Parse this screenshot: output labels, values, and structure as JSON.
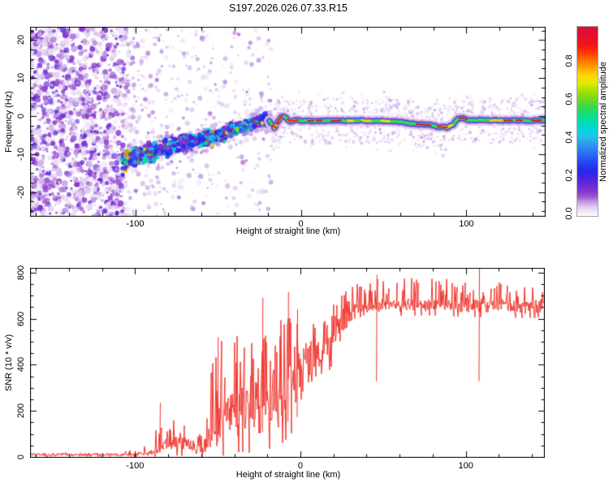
{
  "title": "S197.2026.026.07.33.R15",
  "spectrogram_panel": {
    "ylabel": "Frequency (Hz)",
    "xlabel": "Height of straight line (km)",
    "y_ticks": [
      {
        "label": "20",
        "value": 20
      },
      {
        "label": "10",
        "value": 10
      },
      {
        "label": "0",
        "value": 0
      },
      {
        "label": "-10",
        "value": -10
      },
      {
        "label": "-20",
        "value": -20
      }
    ],
    "x_ticks": [
      {
        "label": "-100",
        "value": -100
      },
      {
        "label": "0",
        "value": 0
      },
      {
        "label": "100",
        "value": 100
      }
    ]
  },
  "snr_panel": {
    "ylabel": "SNR (10 * v/v)",
    "xlabel": "Height of straight line (km)",
    "y_ticks": [
      {
        "label": "0",
        "value": 0
      },
      {
        "label": "200",
        "value": 200
      },
      {
        "label": "400",
        "value": 400
      },
      {
        "label": "600",
        "value": 600
      },
      {
        "label": "800",
        "value": 800
      }
    ],
    "x_ticks": [
      {
        "label": "-100",
        "value": -100
      },
      {
        "label": "0",
        "value": 0
      },
      {
        "label": "100",
        "value": 100
      }
    ]
  },
  "colorbar": {
    "label": "Normalized spectral amplitude",
    "ticks": [
      {
        "label": "0.0",
        "value": 0.0
      },
      {
        "label": "0.2",
        "value": 0.2
      },
      {
        "label": "0.4",
        "value": 0.4
      },
      {
        "label": "0.6",
        "value": 0.6
      },
      {
        "label": "0.8",
        "value": 0.8
      }
    ],
    "range": [
      0.0,
      1.0
    ]
  },
  "chart_data": [
    {
      "type": "heatmap",
      "name": "doppler-spectrogram",
      "title": "S197.2026.026.07.33.R15",
      "xlabel": "Height of straight line (km)",
      "ylabel": "Frequency (Hz)",
      "xlim": [
        -163.5,
        147.8
      ],
      "ylim": [
        -26.5,
        23.5
      ],
      "x_minor_step": 20,
      "x_major_step": 100,
      "y_minor_step": 2.5,
      "y_major_step": 10,
      "colorbar_label": "Normalized spectral amplitude",
      "colormap_stops": [
        [
          0.0,
          "#ffffff"
        ],
        [
          0.02,
          "#f3ecfa"
        ],
        [
          0.05,
          "#ddc7f0"
        ],
        [
          0.08,
          "#bb8ce0"
        ],
        [
          0.1,
          "#9c59d1"
        ],
        [
          0.13,
          "#8735cc"
        ],
        [
          0.16,
          "#6c2bd7"
        ],
        [
          0.2,
          "#4527e0"
        ],
        [
          0.24,
          "#2828e8"
        ],
        [
          0.28,
          "#2446f0"
        ],
        [
          0.33,
          "#2a6df5"
        ],
        [
          0.38,
          "#2e9bf0"
        ],
        [
          0.42,
          "#1fc5e8"
        ],
        [
          0.46,
          "#00d8d8"
        ],
        [
          0.5,
          "#00dcae"
        ],
        [
          0.54,
          "#16dd7a"
        ],
        [
          0.58,
          "#3bd948"
        ],
        [
          0.62,
          "#74da1f"
        ],
        [
          0.66,
          "#a8e000"
        ],
        [
          0.7,
          "#e0ea00"
        ],
        [
          0.74,
          "#ffd800"
        ],
        [
          0.78,
          "#ffa800"
        ],
        [
          0.82,
          "#ff7300"
        ],
        [
          0.86,
          "#ff3d00"
        ],
        [
          0.9,
          "#f31616"
        ],
        [
          0.95,
          "#e40f2e"
        ],
        [
          1.0,
          "#d80f38"
        ]
      ],
      "trace_hz_vs_km": [
        [
          -108,
          -12.3
        ],
        [
          -104,
          -11.3
        ],
        [
          -100,
          -10.8
        ],
        [
          -96,
          -10.2
        ],
        [
          -92,
          -9.7
        ],
        [
          -88,
          -9.3
        ],
        [
          -84,
          -8.8
        ],
        [
          -80,
          -8.3
        ],
        [
          -76,
          -7.8
        ],
        [
          -72,
          -7.3
        ],
        [
          -68,
          -6.9
        ],
        [
          -64,
          -6.6
        ],
        [
          -60,
          -6.3
        ],
        [
          -56,
          -5.9
        ],
        [
          -52,
          -5.4
        ],
        [
          -48,
          -4.9
        ],
        [
          -44,
          -4.3
        ],
        [
          -40,
          -3.7
        ],
        [
          -36,
          -3.0
        ],
        [
          -32,
          -2.4
        ],
        [
          -28,
          -1.8
        ],
        [
          -24,
          -1.2
        ],
        [
          -21,
          -0.9
        ],
        [
          -19,
          -1.3
        ],
        [
          -17,
          -2.6
        ],
        [
          -16,
          -3.3
        ],
        [
          -15,
          -2.6
        ],
        [
          -13.5,
          -1.2
        ],
        [
          -12,
          -0.2
        ],
        [
          -10.5,
          0.1
        ],
        [
          -9,
          -0.5
        ],
        [
          -7.5,
          -1.1
        ],
        [
          -6,
          -1.4
        ],
        [
          -4,
          -1.2
        ],
        [
          -2,
          -1.0
        ],
        [
          0,
          -1.2
        ],
        [
          6,
          -1.3
        ],
        [
          12,
          -1.2
        ],
        [
          18,
          -1.3
        ],
        [
          24,
          -1.2
        ],
        [
          30,
          -1.3
        ],
        [
          36,
          -1.2
        ],
        [
          42,
          -1.3
        ],
        [
          48,
          -1.2
        ],
        [
          54,
          -1.4
        ],
        [
          60,
          -1.6
        ],
        [
          66,
          -1.9
        ],
        [
          72,
          -2.2
        ],
        [
          78,
          -2.4
        ],
        [
          83,
          -2.8
        ],
        [
          88,
          -3.0
        ],
        [
          92,
          -2.2
        ],
        [
          95,
          -0.6
        ],
        [
          98,
          -0.5
        ],
        [
          101,
          -1.0
        ],
        [
          105,
          -1.2
        ],
        [
          110,
          -0.9
        ],
        [
          115,
          -1.2
        ],
        [
          120,
          -1.1
        ],
        [
          126,
          -1.2
        ],
        [
          132,
          -1.1
        ],
        [
          140,
          -1.2
        ],
        [
          148,
          -1.1
        ]
      ],
      "noise_regions": [
        {
          "name": "dense-left",
          "km": [
            -163.5,
            -106
          ],
          "hz": [
            -26.2,
            23.2
          ],
          "count": 1500,
          "amp": [
            0.02,
            0.18
          ],
          "radius": [
            0.8,
            4.0
          ]
        },
        {
          "name": "mid-speckle",
          "km": [
            -106,
            -18
          ],
          "hz": [
            -26.2,
            23.2
          ],
          "count": 520,
          "amp": [
            0.02,
            0.1
          ],
          "radius": [
            0.8,
            3.2
          ],
          "falloff": 1.4
        },
        {
          "name": "right-sparse",
          "km": [
            -18,
            148
          ],
          "count": 120,
          "amp": [
            0.02,
            0.06
          ],
          "radius": [
            0.8,
            2.4
          ],
          "spread_hz": [
            2,
            8
          ]
        }
      ],
      "band": {
        "km": [
          -108,
          -16
        ],
        "count": 900,
        "sigma_hz": [
          2.6,
          1.1
        ],
        "fuzz_count": 500,
        "hot_fraction": 0.1
      },
      "line": {
        "km": [
          -19,
          148
        ],
        "layers": [
          [
            0.05,
            13
          ],
          [
            0.08,
            9
          ],
          [
            0.14,
            6.8
          ],
          [
            0.25,
            5.2
          ],
          [
            0.42,
            4.2
          ],
          [
            0.58,
            3.2
          ]
        ],
        "yellow": {
          "prob": 0.5,
          "amp": 0.7,
          "width": 2.8,
          "seg_km": [
            2,
            8
          ],
          "gap_km": [
            1,
            6
          ]
        },
        "red": {
          "amp": 0.9,
          "width": 2.1,
          "dash_km": [
            2.5,
            11
          ],
          "gap_km": [
            1.5,
            7.5
          ],
          "prob": 0.78
        },
        "fuzz_count": 700
      },
      "seed": 20260733
    },
    {
      "type": "line",
      "name": "snr-profile",
      "xlabel": "Height of straight line (km)",
      "ylabel": "SNR (10 * v/v)",
      "xlim": [
        -163.5,
        147.8
      ],
      "ylim": [
        -3.5,
        820
      ],
      "x_minor_step": 20,
      "x_major_step": 100,
      "y_minor_step": 50,
      "y_major_step": 200,
      "line_color": "#f0342c",
      "envelope_anchors_km_base_noise_spikeprob_spikeamp": [
        [
          -163.5,
          10,
          7,
          0.05,
          12
        ],
        [
          -110,
          10,
          7,
          0.05,
          12
        ],
        [
          -100,
          12,
          8,
          0.08,
          20
        ],
        [
          -90,
          16,
          10,
          0.15,
          40
        ],
        [
          -86,
          30,
          20,
          0.3,
          120
        ],
        [
          -84,
          40,
          25,
          0.3,
          160
        ],
        [
          -80,
          55,
          30,
          0.25,
          100
        ],
        [
          -74,
          70,
          40,
          0.25,
          110
        ],
        [
          -70,
          60,
          35,
          0.2,
          80
        ],
        [
          -66,
          45,
          28,
          0.2,
          60
        ],
        [
          -62,
          40,
          28,
          0.25,
          70
        ],
        [
          -58,
          50,
          35,
          0.3,
          120
        ],
        [
          -54,
          90,
          60,
          0.35,
          300
        ],
        [
          -50,
          130,
          80,
          0.35,
          350
        ],
        [
          -46,
          150,
          90,
          0.35,
          380
        ],
        [
          -42,
          170,
          100,
          0.35,
          400
        ],
        [
          -36,
          200,
          110,
          0.35,
          380
        ],
        [
          -30,
          210,
          120,
          0.3,
          350
        ],
        [
          -24,
          210,
          120,
          0.3,
          380
        ],
        [
          -18,
          230,
          120,
          0.3,
          300
        ],
        [
          -12,
          260,
          130,
          0.3,
          350
        ],
        [
          -6,
          320,
          140,
          0.3,
          300
        ],
        [
          0,
          360,
          120,
          0.3,
          220
        ],
        [
          6,
          400,
          110,
          0.3,
          180
        ],
        [
          12,
          450,
          100,
          0.3,
          160
        ],
        [
          18,
          510,
          80,
          0.3,
          150
        ],
        [
          24,
          560,
          60,
          0.3,
          140
        ],
        [
          30,
          610,
          45,
          0.3,
          130
        ],
        [
          36,
          640,
          35,
          0.3,
          120
        ],
        [
          45,
          655,
          30,
          0.25,
          120
        ],
        [
          60,
          660,
          30,
          0.25,
          115
        ],
        [
          80,
          662,
          30,
          0.25,
          115
        ],
        [
          100,
          658,
          32,
          0.25,
          120
        ],
        [
          120,
          655,
          30,
          0.25,
          115
        ],
        [
          135,
          650,
          30,
          0.25,
          115
        ],
        [
          148,
          655,
          30,
          0.25,
          115
        ]
      ],
      "spike_events_km_value": [
        [
          -85,
          235
        ],
        [
          -50,
          520
        ],
        [
          -23,
          690
        ],
        [
          -7.5,
          715
        ],
        [
          -2,
          640
        ],
        [
          46,
          790
        ],
        [
          108,
          818
        ]
      ],
      "seed": 197
    }
  ]
}
